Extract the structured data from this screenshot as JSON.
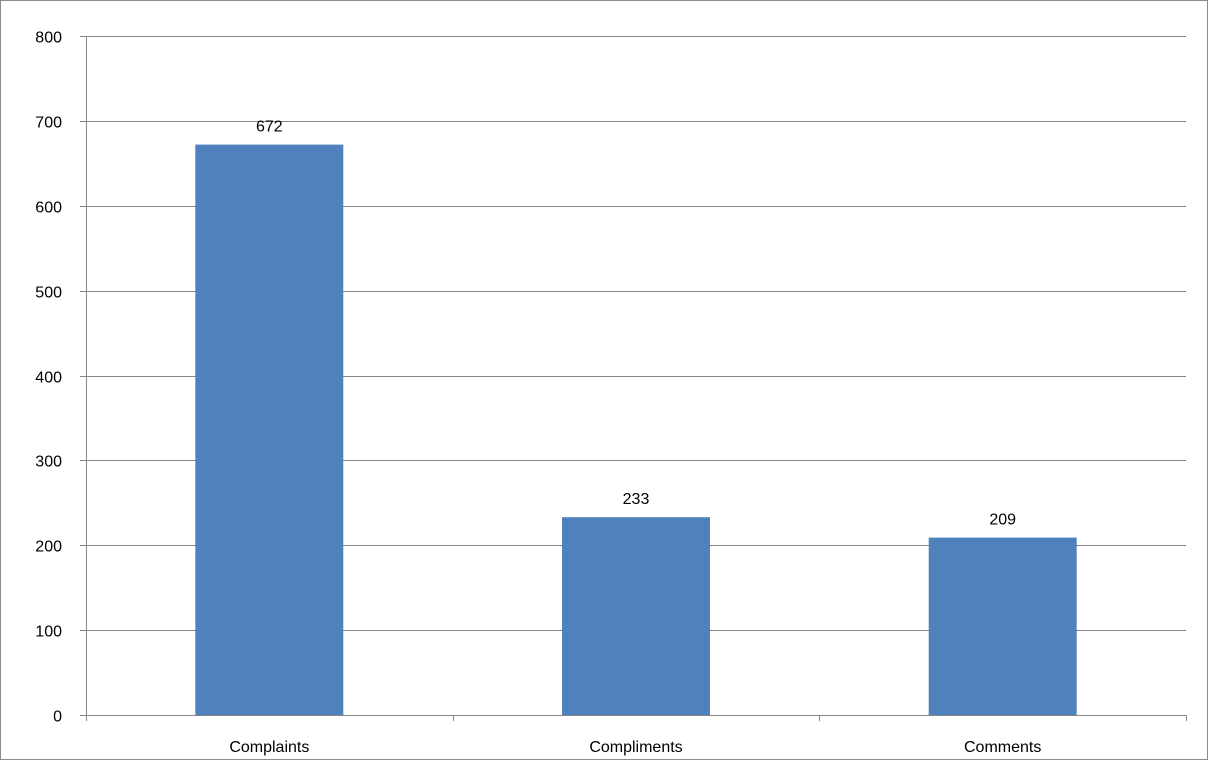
{
  "chart_data": {
    "type": "bar",
    "categories": [
      "Complaints",
      "Compliments",
      "Comments"
    ],
    "values": [
      672,
      233,
      209
    ],
    "data_labels": [
      "672",
      "233",
      "209"
    ],
    "title": "",
    "xlabel": "",
    "ylabel": "",
    "ylim": [
      0,
      800
    ],
    "yticks": [
      0,
      100,
      200,
      300,
      400,
      500,
      600,
      700,
      800
    ],
    "ytick_labels": [
      "0",
      "100",
      "200",
      "300",
      "400",
      "500",
      "600",
      "700",
      "800"
    ],
    "grid": true,
    "legend": "none",
    "bar_color": "#4f81bd",
    "grid_color": "#868686"
  }
}
